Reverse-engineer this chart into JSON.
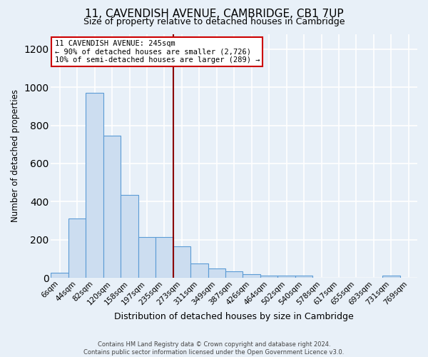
{
  "title": "11, CAVENDISH AVENUE, CAMBRIDGE, CB1 7UP",
  "subtitle": "Size of property relative to detached houses in Cambridge",
  "xlabel": "Distribution of detached houses by size in Cambridge",
  "ylabel": "Number of detached properties",
  "footer_line1": "Contains HM Land Registry data © Crown copyright and database right 2024.",
  "footer_line2": "Contains public sector information licensed under the Open Government Licence v3.0.",
  "categories": [
    "6sqm",
    "44sqm",
    "82sqm",
    "120sqm",
    "158sqm",
    "197sqm",
    "235sqm",
    "273sqm",
    "311sqm",
    "349sqm",
    "387sqm",
    "426sqm",
    "464sqm",
    "502sqm",
    "540sqm",
    "578sqm",
    "617sqm",
    "655sqm",
    "693sqm",
    "731sqm",
    "769sqm"
  ],
  "values": [
    25,
    310,
    970,
    745,
    435,
    215,
    215,
    165,
    75,
    48,
    32,
    20,
    12,
    10,
    12,
    0,
    0,
    0,
    0,
    12,
    0
  ],
  "bar_color": "#ccddf0",
  "bar_edge_color": "#5b9bd5",
  "background_color": "#e8f0f8",
  "grid_color": "#ffffff",
  "vline_color": "#8b0000",
  "vline_pos": 6.5,
  "annotation_text": "11 CAVENDISH AVENUE: 245sqm\n← 90% of detached houses are smaller (2,726)\n10% of semi-detached houses are larger (289) →",
  "annotation_box_color": "#ffffff",
  "annotation_box_edge_color": "#cc0000",
  "ylim": [
    0,
    1280
  ],
  "yticks": [
    0,
    200,
    400,
    600,
    800,
    1000,
    1200
  ]
}
